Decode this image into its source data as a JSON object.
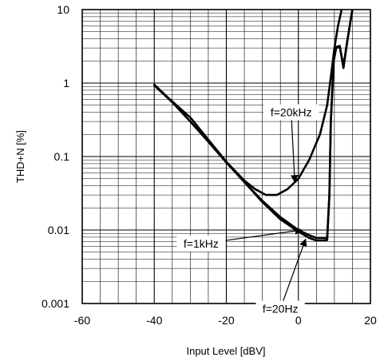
{
  "chart_data": {
    "type": "line",
    "xlabel": "Input Level [dBV]",
    "ylabel": "THD+N [%]",
    "xlim": [
      -60,
      20
    ],
    "ylim": [
      0.001,
      10
    ],
    "yscale": "log",
    "grid": true,
    "legend": "none",
    "x_ticks": [
      "-60",
      "-40",
      "-20",
      "0",
      "20"
    ],
    "y_ticks": [
      "10",
      "1",
      "0.1",
      "0.01",
      "0.001"
    ],
    "series": [
      {
        "name": "f=20kHz",
        "points": [
          [
            -40,
            0.95
          ],
          [
            -36,
            0.62
          ],
          [
            -30,
            0.34
          ],
          [
            -25,
            0.17
          ],
          [
            -20,
            0.085
          ],
          [
            -15,
            0.047
          ],
          [
            -12,
            0.036
          ],
          [
            -9,
            0.03
          ],
          [
            -6,
            0.03
          ],
          [
            -3,
            0.036
          ],
          [
            0,
            0.05
          ],
          [
            3,
            0.09
          ],
          [
            6,
            0.2
          ],
          [
            8,
            0.5
          ],
          [
            9,
            1.2
          ],
          [
            10,
            3
          ],
          [
            11,
            6
          ],
          [
            12,
            10
          ]
        ]
      },
      {
        "name": "f=1kHz",
        "points": [
          [
            -40,
            0.93
          ],
          [
            -35,
            0.55
          ],
          [
            -30,
            0.3
          ],
          [
            -25,
            0.16
          ],
          [
            -20,
            0.083
          ],
          [
            -15,
            0.045
          ],
          [
            -10,
            0.025
          ],
          [
            -5,
            0.015
          ],
          [
            0,
            0.01
          ],
          [
            3,
            0.0085
          ],
          [
            5,
            0.0078
          ],
          [
            7,
            0.0078
          ],
          [
            8,
            0.0078
          ],
          [
            8.6,
            0.03
          ],
          [
            9,
            0.3
          ],
          [
            9.8,
            2.0
          ],
          [
            10.5,
            3.1
          ],
          [
            11.5,
            3.2
          ],
          [
            12.5,
            1.6
          ],
          [
            13.5,
            3.5
          ],
          [
            15,
            10
          ]
        ]
      },
      {
        "name": "f=20Hz",
        "points": [
          [
            -40,
            0.93
          ],
          [
            -35,
            0.55
          ],
          [
            -30,
            0.3
          ],
          [
            -25,
            0.16
          ],
          [
            -20,
            0.083
          ],
          [
            -15,
            0.045
          ],
          [
            -10,
            0.024
          ],
          [
            -5,
            0.014
          ],
          [
            0,
            0.0095
          ],
          [
            3,
            0.0078
          ],
          [
            5,
            0.0072
          ],
          [
            7,
            0.0072
          ],
          [
            8,
            0.0073
          ],
          [
            8.6,
            0.03
          ],
          [
            9,
            0.3
          ],
          [
            9.8,
            2.0
          ],
          [
            10.5,
            3.0
          ],
          [
            11.5,
            3.1
          ],
          [
            12.5,
            1.7
          ],
          [
            13.5,
            3.6
          ],
          [
            15,
            10
          ]
        ]
      }
    ],
    "annotations": [
      {
        "text": "f=20kHz",
        "label_xy": [
          -2,
          0.4
        ],
        "arrow_to": [
          -1,
          0.045
        ]
      },
      {
        "text": "f=1kHz",
        "label_xy": [
          -27,
          0.0065
        ],
        "arrow_to": [
          1,
          0.01
        ]
      },
      {
        "text": "f=20Hz",
        "label_xy": [
          -5,
          0.00085
        ],
        "arrow_to": [
          2,
          0.0075
        ]
      }
    ]
  }
}
